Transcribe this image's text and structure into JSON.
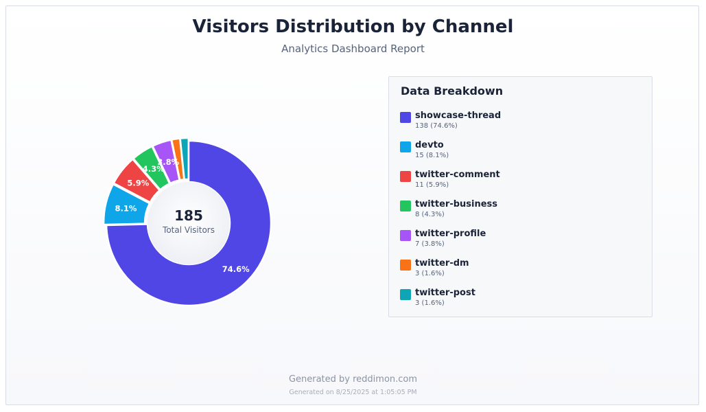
{
  "header": {
    "title": "Visitors Distribution by Channel",
    "subtitle": "Analytics Dashboard Report"
  },
  "center": {
    "value": "185",
    "label": "Total Visitors"
  },
  "breakdown": {
    "title": "Data Breakdown",
    "items": [
      {
        "name": "showcase-thread",
        "detail": "138 (74.6%)",
        "color": "#4f46e5"
      },
      {
        "name": "devto",
        "detail": "15 (8.1%)",
        "color": "#0ea5e9"
      },
      {
        "name": "twitter-comment",
        "detail": "11 (5.9%)",
        "color": "#ef4444"
      },
      {
        "name": "twitter-business",
        "detail": "8 (4.3%)",
        "color": "#22c55e"
      },
      {
        "name": "twitter-profile",
        "detail": "7 (3.8%)",
        "color": "#a855f7"
      },
      {
        "name": "twitter-dm",
        "detail": "3 (1.6%)",
        "color": "#f97316"
      },
      {
        "name": "twitter-post",
        "detail": "3 (1.6%)",
        "color": "#0ea5b7"
      }
    ]
  },
  "chart_data": {
    "type": "pie",
    "title": "Visitors Distribution by Channel",
    "subtitle": "Analytics Dashboard Report",
    "categories": [
      "showcase-thread",
      "devto",
      "twitter-comment",
      "twitter-business",
      "twitter-profile",
      "twitter-dm",
      "twitter-post"
    ],
    "values": [
      138,
      15,
      11,
      8,
      7,
      3,
      3
    ],
    "labels": [
      "74.6%",
      "8.1%",
      "5.9%",
      "4.3%",
      "3.8%",
      "",
      ""
    ],
    "colors": [
      "#4f46e5",
      "#0ea5e9",
      "#ef4444",
      "#22c55e",
      "#a855f7",
      "#f97316",
      "#0ea5b7"
    ],
    "total": 185,
    "donut": true
  },
  "footer": {
    "generated_by": "Generated by reddimon.com",
    "generated_on": "Generated on 8/25/2025 at 1:05:05 PM"
  }
}
